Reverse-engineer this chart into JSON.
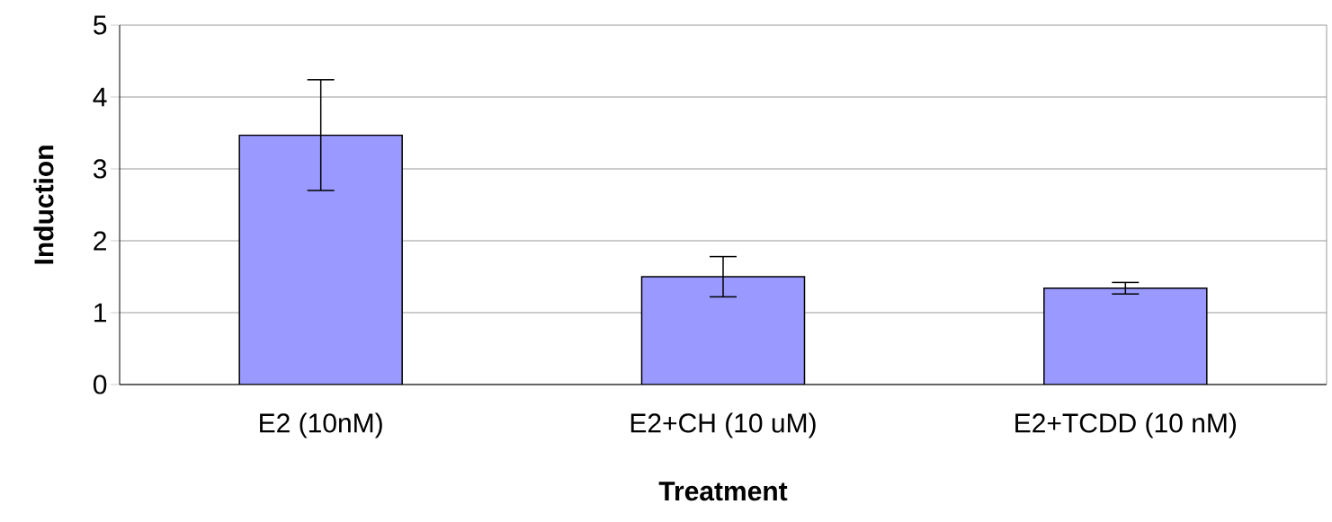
{
  "chart_data": {
    "type": "bar",
    "xlabel": "Treatment",
    "ylabel": "Induction",
    "categories": [
      "E2 (10nM)",
      "E2+CH (10 uM)",
      "E2+TCDD (10 nM)"
    ],
    "values": [
      3.47,
      1.5,
      1.34
    ],
    "errors": [
      0.77,
      0.28,
      0.08
    ],
    "color": "#9999ff",
    "ylim": [
      0,
      5
    ],
    "yticks": [
      0,
      1,
      2,
      3,
      4,
      5
    ],
    "grid": "y"
  }
}
